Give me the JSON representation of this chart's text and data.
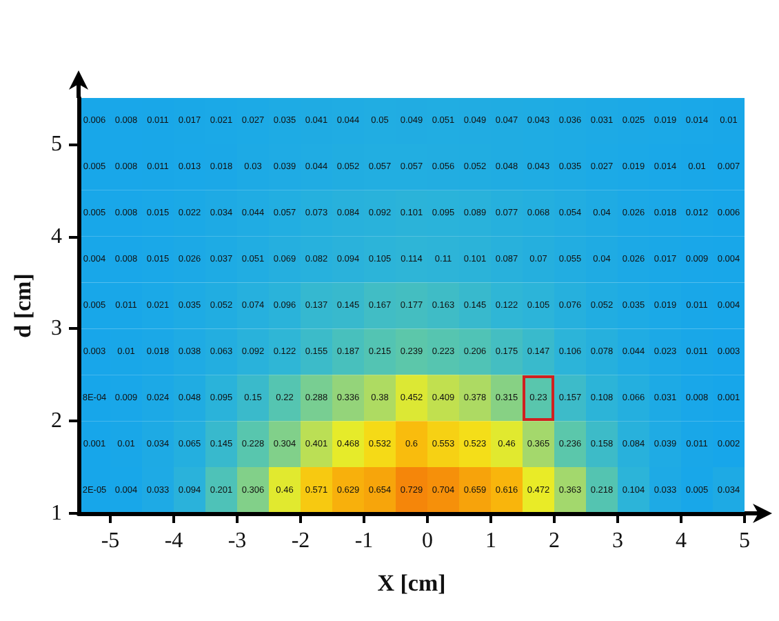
{
  "chart_data": {
    "type": "heatmap",
    "xlabel": "X [cm]",
    "ylabel": "d [cm]",
    "x": [
      -5.25,
      -4.75,
      -4.25,
      -3.75,
      -3.25,
      -2.75,
      -2.25,
      -1.75,
      -1.25,
      -0.75,
      -0.25,
      0.25,
      0.75,
      1.25,
      1.75,
      2.25,
      2.75,
      3.25,
      3.75,
      4.25,
      4.75
    ],
    "y": [
      5.25,
      4.75,
      4.25,
      3.75,
      3.25,
      2.75,
      2.25,
      1.75,
      1.25
    ],
    "xlim": [
      -5.5,
      5
    ],
    "xticks": [
      -5,
      -4,
      -3,
      -2,
      -1,
      0,
      1,
      2,
      3,
      4,
      5
    ],
    "ylim": [
      1,
      5.5
    ],
    "yticks": [
      1,
      2,
      3,
      4,
      5
    ],
    "cells": [
      [
        0.006,
        0.008,
        0.011,
        0.017,
        0.021,
        0.027,
        0.035,
        0.041,
        0.044,
        0.05,
        0.049,
        0.051,
        0.049,
        0.047,
        0.043,
        0.036,
        0.031,
        0.025,
        0.019,
        0.014,
        0.01
      ],
      [
        0.005,
        0.008,
        0.011,
        0.013,
        0.018,
        0.03,
        0.039,
        0.044,
        0.052,
        0.057,
        0.057,
        0.056,
        0.052,
        0.048,
        0.043,
        0.035,
        0.027,
        0.019,
        0.014,
        0.01,
        0.007
      ],
      [
        0.005,
        0.008,
        0.015,
        0.022,
        0.034,
        0.044,
        0.057,
        0.073,
        0.084,
        0.092,
        0.101,
        0.095,
        0.089,
        0.077,
        0.068,
        0.054,
        0.04,
        0.026,
        0.018,
        0.012,
        0.006
      ],
      [
        0.004,
        0.008,
        0.015,
        0.026,
        0.037,
        0.051,
        0.069,
        0.082,
        0.094,
        0.105,
        0.114,
        0.11,
        0.101,
        0.087,
        0.07,
        0.055,
        0.04,
        0.026,
        0.017,
        0.009,
        0.004
      ],
      [
        0.005,
        0.011,
        0.021,
        0.035,
        0.052,
        0.074,
        0.096,
        0.137,
        0.145,
        0.167,
        0.177,
        0.163,
        0.145,
        0.122,
        0.105,
        0.076,
        0.052,
        0.035,
        0.019,
        0.011,
        0.004
      ],
      [
        0.003,
        0.01,
        0.018,
        0.038,
        0.063,
        0.092,
        0.122,
        0.155,
        0.187,
        0.215,
        0.239,
        0.223,
        0.206,
        0.175,
        0.147,
        0.106,
        0.078,
        0.044,
        0.023,
        0.011,
        0.003
      ],
      [
        0.0008,
        0.009,
        0.024,
        0.048,
        0.095,
        0.15,
        0.22,
        0.288,
        0.336,
        0.38,
        0.452,
        0.409,
        0.378,
        0.315,
        0.23,
        0.157,
        0.108,
        0.066,
        0.031,
        0.008,
        0.001
      ],
      [
        0.001,
        0.01,
        0.034,
        0.065,
        0.145,
        0.228,
        0.304,
        0.401,
        0.468,
        0.532,
        0.6,
        0.553,
        0.523,
        0.46,
        0.365,
        0.236,
        0.158,
        0.084,
        0.039,
        0.011,
        0.002
      ],
      [
        2e-05,
        0.004,
        0.033,
        0.094,
        0.201,
        0.306,
        0.46,
        0.571,
        0.629,
        0.654,
        0.729,
        0.704,
        0.659,
        0.616,
        0.472,
        0.363,
        0.218,
        0.104,
        0.033,
        0.005,
        0.034
      ]
    ],
    "cell_labels": [
      [
        "0.006",
        "0.008",
        "0.011",
        "0.017",
        "0.021",
        "0.027",
        "0.035",
        "0.041",
        "0.044",
        "0.05",
        "0.049",
        "0.051",
        "0.049",
        "0.047",
        "0.043",
        "0.036",
        "0.031",
        "0.025",
        "0.019",
        "0.014",
        "0.01"
      ],
      [
        "0.005",
        "0.008",
        "0.011",
        "0.013",
        "0.018",
        "0.03",
        "0.039",
        "0.044",
        "0.052",
        "0.057",
        "0.057",
        "0.056",
        "0.052",
        "0.048",
        "0.043",
        "0.035",
        "0.027",
        "0.019",
        "0.014",
        "0.01",
        "0.007"
      ],
      [
        "0.005",
        "0.008",
        "0.015",
        "0.022",
        "0.034",
        "0.044",
        "0.057",
        "0.073",
        "0.084",
        "0.092",
        "0.101",
        "0.095",
        "0.089",
        "0.077",
        "0.068",
        "0.054",
        "0.04",
        "0.026",
        "0.018",
        "0.012",
        "0.006"
      ],
      [
        "0.004",
        "0.008",
        "0.015",
        "0.026",
        "0.037",
        "0.051",
        "0.069",
        "0.082",
        "0.094",
        "0.105",
        "0.114",
        "0.11",
        "0.101",
        "0.087",
        "0.07",
        "0.055",
        "0.04",
        "0.026",
        "0.017",
        "0.009",
        "0.004"
      ],
      [
        "0.005",
        "0.011",
        "0.021",
        "0.035",
        "0.052",
        "0.074",
        "0.096",
        "0.137",
        "0.145",
        "0.167",
        "0.177",
        "0.163",
        "0.145",
        "0.122",
        "0.105",
        "0.076",
        "0.052",
        "0.035",
        "0.019",
        "0.011",
        "0.004"
      ],
      [
        "0.003",
        "0.01",
        "0.018",
        "0.038",
        "0.063",
        "0.092",
        "0.122",
        "0.155",
        "0.187",
        "0.215",
        "0.239",
        "0.223",
        "0.206",
        "0.175",
        "0.147",
        "0.106",
        "0.078",
        "0.044",
        "0.023",
        "0.011",
        "0.003"
      ],
      [
        "8E-04",
        "0.009",
        "0.024",
        "0.048",
        "0.095",
        "0.15",
        "0.22",
        "0.288",
        "0.336",
        "0.38",
        "0.452",
        "0.409",
        "0.378",
        "0.315",
        "0.23",
        "0.157",
        "0.108",
        "0.066",
        "0.031",
        "0.008",
        "0.001"
      ],
      [
        "0.001",
        "0.01",
        "0.034",
        "0.065",
        "0.145",
        "0.228",
        "0.304",
        "0.401",
        "0.468",
        "0.532",
        "0.6",
        "0.553",
        "0.523",
        "0.46",
        "0.365",
        "0.236",
        "0.158",
        "0.084",
        "0.039",
        "0.011",
        "0.002"
      ],
      [
        "2E-05",
        "0.004",
        "0.033",
        "0.094",
        "0.201",
        "0.306",
        "0.46",
        "0.571",
        "0.629",
        "0.654",
        "0.729",
        "0.704",
        "0.659",
        "0.616",
        "0.472",
        "0.363",
        "0.218",
        "0.104",
        "0.033",
        "0.005",
        "0.034"
      ]
    ]
  }
}
